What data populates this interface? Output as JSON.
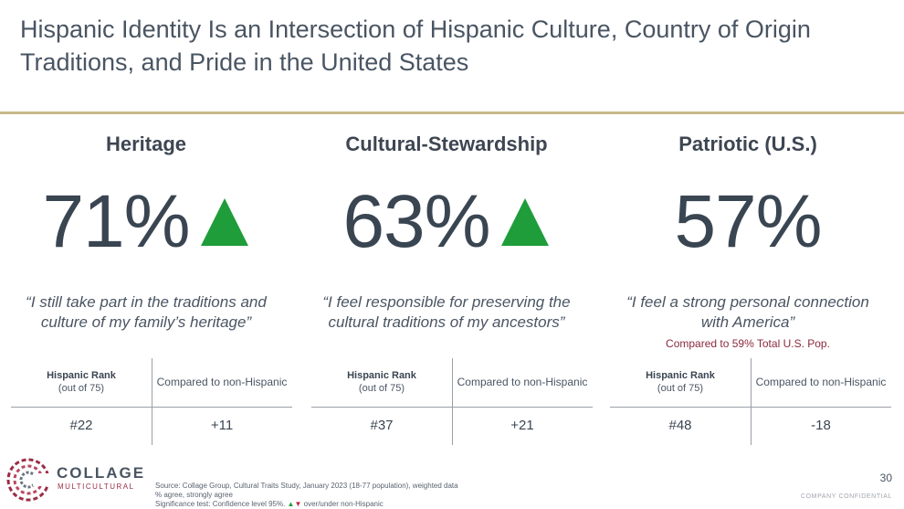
{
  "title": "Hispanic Identity Is an Intersection of Hispanic Culture, Country of Origin Traditions, and Pride in the United States",
  "colors": {
    "accent_rule": "#c8b98a",
    "up_arrow": "#1f9d3a",
    "down_arrow": "#c0283a",
    "compare_note": "#8a2a3c"
  },
  "columns": [
    {
      "heading": "Heritage",
      "percent": "71%",
      "significant_up": true,
      "quote": "“I still take part in the traditions and culture of my family’s heritage”",
      "compare_note": "",
      "rank_label": "Hispanic Rank",
      "rank_sub": "(out of 75)",
      "compare_label": "Compared to non-Hispanic",
      "rank": "#22",
      "compare": "+11"
    },
    {
      "heading": "Cultural-Stewardship",
      "percent": "63%",
      "significant_up": true,
      "quote": "“I feel responsible for preserving the cultural traditions of my ancestors”",
      "compare_note": "",
      "rank_label": "Hispanic Rank",
      "rank_sub": "(out of 75)",
      "compare_label": "Compared to non-Hispanic",
      "rank": "#37",
      "compare": "+21"
    },
    {
      "heading": "Patriotic (U.S.)",
      "percent": "57%",
      "significant_up": false,
      "quote": "“I feel a strong personal connection with America”",
      "compare_note": "Compared to 59% Total U.S. Pop.",
      "rank_label": "Hispanic Rank",
      "rank_sub": "(out of 75)",
      "compare_label": "Compared to non-Hispanic",
      "rank": "#48",
      "compare": "-18"
    }
  ],
  "logo": {
    "name": "COLLAGE",
    "sub": "MULTICULTURAL"
  },
  "footnote": {
    "source": "Source: Collage Group, Cultural Traits Study, January 2023 (18-77 population), weighted data",
    "agree": "% agree, strongly agree",
    "sig_prefix": "Significance test: Confidence level 95%.",
    "sig_suffix": "over/under non-Hispanic"
  },
  "page_number": "30",
  "confidential": "COMPANY CONFIDENTIAL"
}
